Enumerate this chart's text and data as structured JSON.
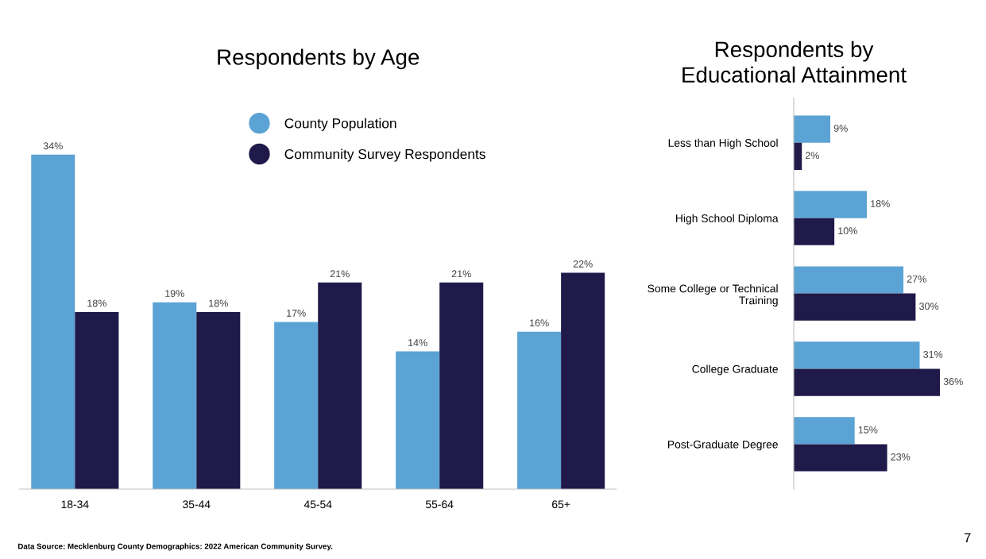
{
  "chart_data": [
    {
      "type": "bar",
      "title": "Respondents by Age",
      "categories": [
        "18-34",
        "35-44",
        "45-54",
        "55-64",
        "65+"
      ],
      "legend": "top",
      "series": [
        {
          "name": "County Population",
          "color": "#5ba3d4",
          "values": [
            34,
            19,
            17,
            14,
            16
          ],
          "value_labels": [
            "34%",
            "19%",
            "17%",
            "14%",
            "16%"
          ]
        },
        {
          "name": "Community Survey Respondents",
          "color": "#1f1a4a",
          "values": [
            18,
            18,
            21,
            21,
            22
          ],
          "value_labels": [
            "18%",
            "18%",
            "21%",
            "21%",
            "22%"
          ]
        }
      ],
      "annotations": [
        "Data Source: Mecklenburg County Demographics: 2022 American Community Survey.",
        "7"
      ]
    },
    {
      "type": "bar",
      "orientation": "horizontal",
      "title": "Respondents by\nEducational Attainment",
      "categories": [
        "Less than High School",
        "High School Diploma",
        "Some College or Technical\nTraining",
        "College Graduate",
        "Post-Graduate Degree"
      ],
      "legend": false,
      "series": [
        {
          "color": "#5ba3d4",
          "values": [
            9,
            18,
            27,
            31,
            15
          ],
          "value_labels": [
            "9%",
            "18%",
            "27%",
            "31%",
            "15%"
          ]
        },
        {
          "color": "#1f1a4a",
          "values": [
            2,
            10,
            30,
            36,
            23
          ],
          "value_labels": [
            "2%",
            "10%",
            "30%",
            "36%",
            "23%"
          ]
        }
      ]
    }
  ]
}
